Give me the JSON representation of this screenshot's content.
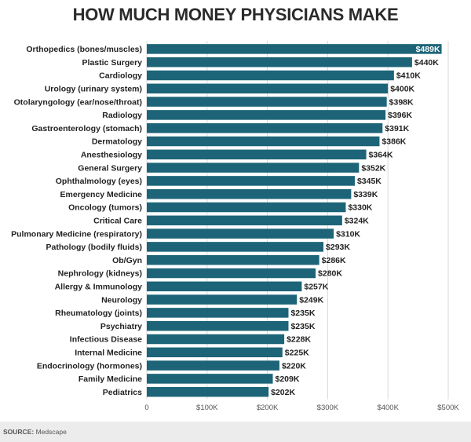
{
  "chart_data": {
    "type": "bar",
    "orientation": "horizontal",
    "title": "HOW MUCH MONEY PHYSICIANS MAKE",
    "categories": [
      "Orthopedics (bones/muscles)",
      "Plastic Surgery",
      "Cardiology",
      "Urology (urinary system)",
      "Otolaryngology (ear/nose/throat)",
      "Radiology",
      "Gastroenterology (stomach)",
      "Dermatology",
      "Anesthesiology",
      "General Surgery",
      "Ophthalmology (eyes)",
      "Emergency Medicine",
      "Oncology (tumors)",
      "Critical Care",
      "Pulmonary Medicine (respiratory)",
      "Pathology (bodily fluids)",
      "Ob/Gyn",
      "Nephrology (kidneys)",
      "Allergy & Immunology",
      "Neurology",
      "Rheumatology (joints)",
      "Psychiatry",
      "Infectious Disease",
      "Internal Medicine",
      "Endocrinology (hormones)",
      "Family Medicine",
      "Pediatrics"
    ],
    "values": [
      489,
      440,
      410,
      400,
      398,
      396,
      391,
      386,
      364,
      352,
      345,
      339,
      330,
      324,
      310,
      293,
      286,
      280,
      257,
      249,
      235,
      235,
      228,
      225,
      220,
      209,
      202
    ],
    "value_labels": [
      "$489K",
      "$440K",
      "$410K",
      "$400K",
      "$398K",
      "$396K",
      "$391K",
      "$386K",
      "$364K",
      "$352K",
      "$345K",
      "$339K",
      "$330K",
      "$324K",
      "$310K",
      "$293K",
      "$286K",
      "$280K",
      "$257K",
      "$249K",
      "$235K",
      "$235K",
      "$228K",
      "$225K",
      "$220K",
      "$209K",
      "$202K"
    ],
    "xlim": [
      0,
      500
    ],
    "xticks": [
      0,
      100,
      200,
      300,
      400,
      500
    ],
    "xtick_labels": [
      "0",
      "$100K",
      "$200K",
      "$300K",
      "$400K",
      "$500K"
    ],
    "grid": true,
    "bar_color": "#1d6478"
  },
  "source": {
    "label": "SOURCE:",
    "text": "Medscape"
  }
}
